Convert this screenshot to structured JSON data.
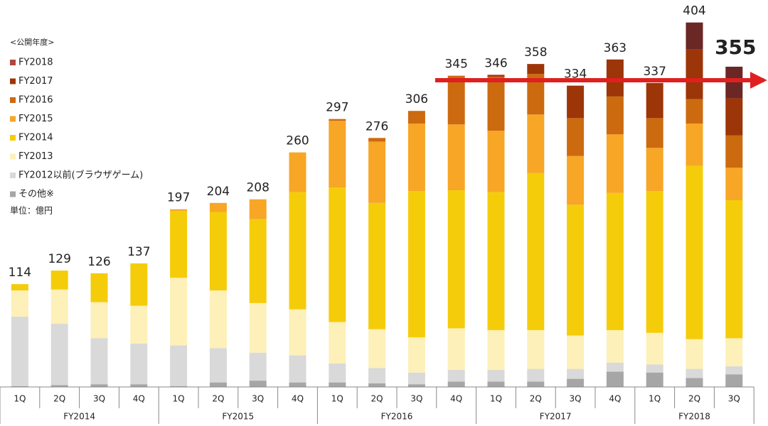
{
  "chart_data": {
    "type": "stacked-bar",
    "legend_title": "<公開年度>",
    "unit_label": "単位：億円",
    "categories": [
      "1Q",
      "2Q",
      "3Q",
      "4Q",
      "1Q",
      "2Q",
      "3Q",
      "4Q",
      "1Q",
      "2Q",
      "3Q",
      "4Q",
      "1Q",
      "2Q",
      "3Q",
      "4Q",
      "1Q",
      "2Q",
      "3Q"
    ],
    "group_labels": [
      "FY2014",
      "FY2015",
      "FY2016",
      "FY2017",
      "FY2018"
    ],
    "totals": [
      114,
      129,
      126,
      137,
      197,
      204,
      208,
      260,
      297,
      276,
      306,
      345,
      346,
      358,
      334,
      363,
      337,
      404,
      355
    ],
    "series": [
      {
        "name": "FY2018",
        "color": "#6b2626",
        "legend_color": "#b0473f",
        "values": [
          0,
          0,
          0,
          0,
          0,
          0,
          0,
          0,
          0,
          0,
          0,
          0,
          0,
          0,
          0,
          0,
          0,
          30,
          35
        ]
      },
      {
        "name": "FY2017",
        "color": "#9c3508",
        "values": [
          0,
          0,
          0,
          0,
          0,
          0,
          0,
          0,
          0,
          0,
          0,
          0,
          2,
          11,
          36,
          41,
          39,
          55,
          41
        ]
      },
      {
        "name": "FY2016",
        "color": "#cc6a10",
        "values": [
          0,
          0,
          0,
          0,
          0,
          0,
          0,
          0,
          2,
          4,
          14,
          54,
          60,
          45,
          42,
          42,
          33,
          27,
          36
        ]
      },
      {
        "name": "FY2015",
        "color": "#f7a626",
        "values": [
          0,
          0,
          0,
          0,
          2,
          10,
          22,
          44,
          74,
          68,
          75,
          73,
          68,
          65,
          54,
          65,
          48,
          47,
          36
        ]
      },
      {
        "name": "FY2014",
        "color": "#f5cc0a",
        "values": [
          7,
          21,
          32,
          47,
          74,
          87,
          93,
          130,
          149,
          140,
          162,
          153,
          153,
          174,
          145,
          152,
          157,
          192,
          153
        ]
      },
      {
        "name": "FY2013",
        "color": "#fdf0b8",
        "values": [
          29,
          38,
          40,
          42,
          75,
          64,
          55,
          51,
          46,
          43,
          39,
          46,
          44,
          43,
          37,
          36,
          35,
          33,
          31
        ]
      },
      {
        "name": "FY2012以前(ブラウザゲーム)",
        "color": "#d9d9d9",
        "values": [
          77,
          68,
          51,
          45,
          45,
          38,
          31,
          30,
          21,
          17,
          13,
          13,
          13,
          14,
          11,
          10,
          9,
          10,
          9
        ]
      },
      {
        "name": "その他※",
        "color": "#a6a6a6",
        "values": [
          1,
          2,
          3,
          3,
          1,
          5,
          7,
          5,
          5,
          4,
          3,
          6,
          6,
          6,
          9,
          17,
          16,
          10,
          14
        ]
      }
    ],
    "ylim": [
      0,
      425
    ]
  }
}
